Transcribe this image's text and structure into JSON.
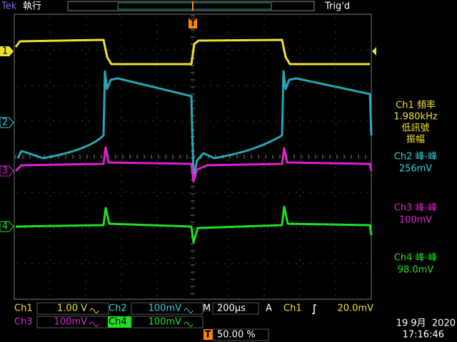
{
  "header": {
    "brand": "Tek",
    "state": "執行",
    "trigger_status": "Trig'd"
  },
  "markers": {
    "ch1": "1",
    "ch2": "2",
    "ch3": "3",
    "ch4": "4",
    "trigger": "T"
  },
  "measurements": [
    {
      "label": "Ch1 頻率",
      "value": "1.980kHz",
      "notes": [
        "低訊號",
        "振幅"
      ]
    },
    {
      "label": "Ch2 峰-峰",
      "value": "256mV"
    },
    {
      "label": "Ch3 峰-峰",
      "value": "100mV"
    },
    {
      "label": "Ch4 峰-峰",
      "value": "98.0mV"
    }
  ],
  "status": {
    "ch1": {
      "label": "Ch1",
      "scale": "1.00 V"
    },
    "ch2": {
      "label": "Ch2",
      "scale": "100mV"
    },
    "ch3": {
      "label": "Ch3",
      "scale": "100mV"
    },
    "ch4": {
      "label": "Ch4",
      "scale": "100mV"
    },
    "timebase": {
      "label": "M",
      "value": "200µs"
    },
    "trigger": {
      "label": "A",
      "source": "Ch1",
      "level": "20.0mV"
    },
    "trigger_offset": "50.00 %",
    "date": "19 9月  2020",
    "time": "17:16:46"
  }
}
